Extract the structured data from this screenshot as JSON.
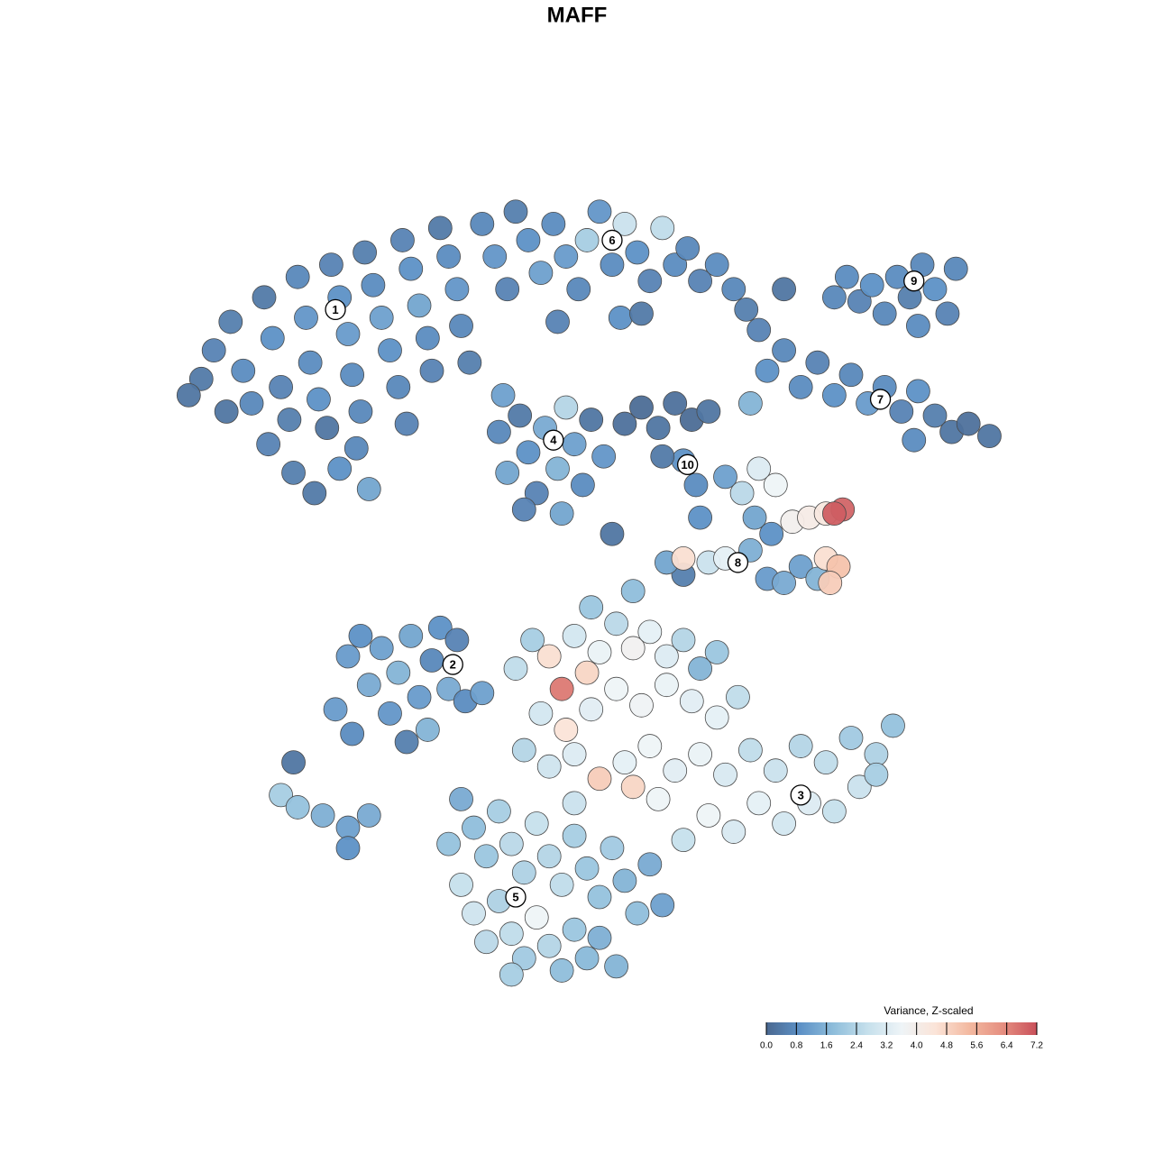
{
  "chart_data": {
    "type": "scatter",
    "title": "MAFF",
    "xlim": [
      -10,
      10
    ],
    "ylim": [
      -10,
      10
    ],
    "colorbar_title": "Variance, Z-scaled",
    "clim": [
      0,
      7.2
    ],
    "colorbar_ticks": [
      {
        "value": 0,
        "label": "0.0"
      },
      0.8,
      1.6,
      2.4,
      3.2,
      {
        "value": 4,
        "label": "4.0"
      },
      4.8,
      5.6,
      6.4,
      7.2
    ],
    "colormap": [
      "#4a6890",
      "#5d91c6",
      "#8fbedb",
      "#c6e0ec",
      "#eef4f7",
      "#fbe4d8",
      "#f3b9a0",
      "#e58e80",
      "#c9505a"
    ],
    "points": [
      [
        -9.5,
        4.8,
        0.4
      ],
      [
        -9.2,
        5.5,
        0.6
      ],
      [
        -8.8,
        6.2,
        0.5
      ],
      [
        -8.5,
        5.0,
        0.8
      ],
      [
        -8.3,
        4.2,
        0.7
      ],
      [
        -8.0,
        6.8,
        0.4
      ],
      [
        -7.8,
        5.8,
        0.9
      ],
      [
        -7.6,
        4.6,
        0.6
      ],
      [
        -7.4,
        3.8,
        0.5
      ],
      [
        -7.2,
        7.3,
        0.7
      ],
      [
        -7.0,
        6.3,
        1.0
      ],
      [
        -6.9,
        5.2,
        0.8
      ],
      [
        -6.7,
        4.3,
        0.9
      ],
      [
        -6.5,
        3.6,
        0.3
      ],
      [
        -6.4,
        7.6,
        0.6
      ],
      [
        -6.2,
        6.8,
        0.9
      ],
      [
        -6.0,
        5.9,
        1.1
      ],
      [
        -5.9,
        4.9,
        0.8
      ],
      [
        -5.7,
        4.0,
        0.7
      ],
      [
        -5.6,
        7.9,
        0.5
      ],
      [
        -5.4,
        7.1,
        0.8
      ],
      [
        -5.2,
        6.3,
        1.2
      ],
      [
        -5.0,
        5.5,
        0.9
      ],
      [
        -4.8,
        4.6,
        0.7
      ],
      [
        -4.7,
        8.2,
        0.6
      ],
      [
        -4.5,
        7.5,
        0.9
      ],
      [
        -4.3,
        6.6,
        1.3
      ],
      [
        -4.1,
        5.8,
        0.8
      ],
      [
        -4.0,
        5.0,
        0.6
      ],
      [
        -3.8,
        8.5,
        0.4
      ],
      [
        -3.6,
        7.8,
        0.8
      ],
      [
        -3.4,
        7.0,
        1.0
      ],
      [
        -3.3,
        6.1,
        0.7
      ],
      [
        -3.1,
        5.2,
        0.5
      ],
      [
        -8.9,
        4.0,
        0.3
      ],
      [
        -7.3,
        2.5,
        0.5
      ],
      [
        -6.8,
        2.0,
        0.4
      ],
      [
        -6.2,
        2.6,
        0.9
      ],
      [
        -5.5,
        2.1,
        1.3
      ],
      [
        -4.6,
        3.7,
        0.6
      ],
      [
        -5.8,
        3.1,
        0.7
      ],
      [
        -9.8,
        4.4,
        0.3
      ],
      [
        -7.9,
        3.2,
        0.6
      ],
      [
        -2.8,
        8.6,
        0.7
      ],
      [
        -2.5,
        7.8,
        1.0
      ],
      [
        -2.2,
        7.0,
        0.6
      ],
      [
        -2.0,
        8.9,
        0.5
      ],
      [
        -1.7,
        8.2,
        0.9
      ],
      [
        -1.4,
        7.4,
        1.2
      ],
      [
        -1.1,
        8.6,
        0.8
      ],
      [
        -0.8,
        7.8,
        1.1
      ],
      [
        -0.5,
        7.0,
        0.7
      ],
      [
        -0.3,
        8.2,
        2.2
      ],
      [
        0.0,
        8.9,
        1.0
      ],
      [
        0.3,
        7.6,
        0.8
      ],
      [
        0.6,
        8.6,
        2.8
      ],
      [
        0.9,
        7.9,
        0.9
      ],
      [
        1.2,
        7.2,
        0.6
      ],
      [
        1.5,
        8.5,
        2.6
      ],
      [
        1.8,
        7.6,
        0.8
      ],
      [
        2.1,
        8.0,
        0.7
      ],
      [
        2.4,
        7.2,
        0.6
      ],
      [
        2.8,
        7.6,
        0.8
      ],
      [
        3.2,
        7.0,
        0.7
      ],
      [
        3.5,
        6.5,
        0.5
      ],
      [
        0.5,
        6.3,
        0.9
      ],
      [
        -1.0,
        6.2,
        0.6
      ],
      [
        1.0,
        6.4,
        0.4
      ],
      [
        3.8,
        6.0,
        0.6
      ],
      [
        5.6,
        6.8,
        0.7
      ],
      [
        5.9,
        7.3,
        0.8
      ],
      [
        6.2,
        6.7,
        0.6
      ],
      [
        6.5,
        7.1,
        0.9
      ],
      [
        6.8,
        6.4,
        0.7
      ],
      [
        7.1,
        7.3,
        0.8
      ],
      [
        7.4,
        6.8,
        0.5
      ],
      [
        7.7,
        7.6,
        0.7
      ],
      [
        8.0,
        7.0,
        0.9
      ],
      [
        8.3,
        6.4,
        0.6
      ],
      [
        8.5,
        7.5,
        0.7
      ],
      [
        7.6,
        6.1,
        0.8
      ],
      [
        4.4,
        7.0,
        0.3
      ],
      [
        4.0,
        5.0,
        0.9
      ],
      [
        4.4,
        5.5,
        0.7
      ],
      [
        4.8,
        4.6,
        0.8
      ],
      [
        5.2,
        5.2,
        0.6
      ],
      [
        5.6,
        4.4,
        0.9
      ],
      [
        6.0,
        4.9,
        0.7
      ],
      [
        6.4,
        4.2,
        1.1
      ],
      [
        6.8,
        4.6,
        0.8
      ],
      [
        7.2,
        4.0,
        0.6
      ],
      [
        7.6,
        4.5,
        0.9
      ],
      [
        8.0,
        3.9,
        0.5
      ],
      [
        8.4,
        3.5,
        0.3
      ],
      [
        8.8,
        3.7,
        0.2
      ],
      [
        9.3,
        3.4,
        0.3
      ],
      [
        7.5,
        3.3,
        0.8
      ],
      [
        3.6,
        4.2,
        1.6
      ],
      [
        -2.4,
        3.5,
        0.7
      ],
      [
        -2.2,
        2.5,
        1.3
      ],
      [
        -1.9,
        3.9,
        0.4
      ],
      [
        -1.7,
        3.0,
        0.9
      ],
      [
        -1.5,
        2.0,
        0.6
      ],
      [
        -1.3,
        3.6,
        1.4
      ],
      [
        -1.0,
        2.6,
        1.6
      ],
      [
        -0.8,
        4.1,
        2.4
      ],
      [
        -0.6,
        3.2,
        1.2
      ],
      [
        -0.4,
        2.2,
        0.8
      ],
      [
        -0.2,
        3.8,
        0.3
      ],
      [
        0.1,
        2.9,
        1.0
      ],
      [
        -1.8,
        1.6,
        0.6
      ],
      [
        -2.3,
        4.4,
        1.2
      ],
      [
        -0.9,
        1.5,
        1.3
      ],
      [
        0.6,
        3.7,
        0.2
      ],
      [
        1.0,
        4.1,
        0.1
      ],
      [
        1.4,
        3.6,
        0.3
      ],
      [
        1.8,
        4.2,
        0.2
      ],
      [
        2.2,
        3.8,
        0.1
      ],
      [
        2.6,
        4.0,
        0.3
      ],
      [
        2.0,
        2.8,
        0.9
      ],
      [
        2.3,
        2.2,
        0.8
      ],
      [
        1.5,
        2.9,
        0.4
      ],
      [
        0.3,
        1.0,
        0.3
      ],
      [
        2.4,
        1.4,
        0.9
      ],
      [
        3.0,
        2.4,
        1.2
      ],
      [
        3.4,
        2.0,
        2.5
      ],
      [
        3.8,
        2.6,
        3.2
      ],
      [
        4.2,
        2.2,
        3.6
      ],
      [
        3.7,
        1.4,
        1.3
      ],
      [
        4.1,
        1.0,
        0.9
      ],
      [
        4.6,
        1.3,
        3.9
      ],
      [
        5.0,
        1.4,
        4.1
      ],
      [
        5.4,
        1.5,
        4.3
      ],
      [
        5.8,
        1.6,
        6.9
      ],
      [
        5.6,
        1.5,
        7.0
      ],
      [
        2.6,
        0.3,
        2.8
      ],
      [
        3.0,
        0.4,
        3.4
      ],
      [
        3.6,
        0.6,
        1.5
      ],
      [
        4.0,
        -0.1,
        1.1
      ],
      [
        4.4,
        -0.2,
        1.4
      ],
      [
        4.8,
        0.2,
        1.2
      ],
      [
        5.2,
        -0.1,
        1.6
      ],
      [
        5.4,
        0.4,
        4.6
      ],
      [
        5.7,
        0.2,
        5.2
      ],
      [
        5.5,
        -0.2,
        5.0
      ],
      [
        2.0,
        0.0,
        0.5
      ],
      [
        1.6,
        0.3,
        1.3
      ],
      [
        -6.0,
        -2.0,
        1.1
      ],
      [
        -5.7,
        -1.5,
        0.9
      ],
      [
        -5.5,
        -2.7,
        1.4
      ],
      [
        -5.2,
        -1.8,
        1.2
      ],
      [
        -5.0,
        -3.4,
        1.0
      ],
      [
        -4.8,
        -2.4,
        1.6
      ],
      [
        -4.5,
        -1.5,
        1.3
      ],
      [
        -4.3,
        -3.0,
        1.1
      ],
      [
        -4.0,
        -2.1,
        0.7
      ],
      [
        -3.8,
        -1.3,
        0.9
      ],
      [
        -3.6,
        -2.8,
        1.4
      ],
      [
        -3.4,
        -1.6,
        0.6
      ],
      [
        -3.2,
        -3.1,
        0.8
      ],
      [
        -6.3,
        -3.3,
        1.1
      ],
      [
        -5.9,
        -3.9,
        0.8
      ],
      [
        -4.6,
        -4.1,
        0.5
      ],
      [
        -2.8,
        -2.9,
        1.2
      ],
      [
        -4.1,
        -3.8,
        1.6
      ],
      [
        -7.6,
        -5.4,
        2.2
      ],
      [
        -7.2,
        -5.7,
        1.9
      ],
      [
        -6.6,
        -5.9,
        1.5
      ],
      [
        -6.0,
        -6.2,
        1.2
      ],
      [
        -5.5,
        -5.9,
        1.4
      ],
      [
        -6.0,
        -6.7,
        0.9
      ],
      [
        -7.3,
        -4.6,
        0.3
      ],
      [
        -2.0,
        -2.3,
        2.6
      ],
      [
        -1.6,
        -1.6,
        2.2
      ],
      [
        -1.2,
        -2.0,
        4.6
      ],
      [
        -0.9,
        -2.8,
        6.6
      ],
      [
        -0.6,
        -1.5,
        3.0
      ],
      [
        -0.3,
        -2.4,
        4.8
      ],
      [
        0.0,
        -1.9,
        3.5
      ],
      [
        0.4,
        -1.2,
        2.5
      ],
      [
        0.8,
        -1.8,
        3.8
      ],
      [
        1.2,
        -1.4,
        3.4
      ],
      [
        1.6,
        -2.0,
        3.2
      ],
      [
        2.0,
        -1.6,
        2.4
      ],
      [
        2.4,
        -2.3,
        1.6
      ],
      [
        2.8,
        -1.9,
        2.0
      ],
      [
        -1.4,
        -3.4,
        3.0
      ],
      [
        -0.8,
        -3.8,
        4.5
      ],
      [
        -0.2,
        -3.3,
        3.3
      ],
      [
        0.4,
        -2.8,
        3.6
      ],
      [
        1.0,
        -3.2,
        3.7
      ],
      [
        1.6,
        -2.7,
        3.5
      ],
      [
        2.2,
        -3.1,
        3.3
      ],
      [
        2.8,
        -3.5,
        3.4
      ],
      [
        3.3,
        -3.0,
        2.6
      ],
      [
        -1.8,
        -4.3,
        2.4
      ],
      [
        -1.2,
        -4.7,
        2.9
      ],
      [
        -0.6,
        -4.4,
        3.2
      ],
      [
        0.0,
        -5.0,
        5.0
      ],
      [
        0.6,
        -4.6,
        3.4
      ],
      [
        1.2,
        -4.2,
        3.6
      ],
      [
        1.8,
        -4.8,
        3.3
      ],
      [
        2.4,
        -4.4,
        3.5
      ],
      [
        3.0,
        -4.9,
        3.1
      ],
      [
        3.6,
        -4.3,
        2.6
      ],
      [
        4.2,
        -4.8,
        2.8
      ],
      [
        4.8,
        -4.2,
        2.4
      ],
      [
        5.4,
        -4.6,
        2.6
      ],
      [
        6.0,
        -4.0,
        2.1
      ],
      [
        6.6,
        -4.4,
        2.3
      ],
      [
        7.0,
        -3.7,
        1.9
      ],
      [
        5.0,
        -5.6,
        3.2
      ],
      [
        4.4,
        -6.1,
        3.0
      ],
      [
        3.8,
        -5.6,
        3.4
      ],
      [
        3.2,
        -6.3,
        3.1
      ],
      [
        2.6,
        -5.9,
        3.6
      ],
      [
        2.0,
        -6.5,
        2.7
      ],
      [
        5.6,
        -5.8,
        2.7
      ],
      [
        6.2,
        -5.2,
        2.8
      ],
      [
        6.6,
        -4.9,
        2.2
      ],
      [
        1.4,
        -5.5,
        3.6
      ],
      [
        0.8,
        -5.2,
        4.8
      ],
      [
        2.0,
        0.4,
        4.6
      ],
      [
        -0.2,
        -0.8,
        2.0
      ],
      [
        0.8,
        -0.4,
        1.8
      ],
      [
        -3.3,
        -5.5,
        1.4
      ],
      [
        -3.0,
        -6.2,
        1.8
      ],
      [
        -2.7,
        -6.9,
        2.0
      ],
      [
        -2.4,
        -5.8,
        2.2
      ],
      [
        -2.1,
        -6.6,
        2.5
      ],
      [
        -1.8,
        -7.3,
        2.3
      ],
      [
        -1.5,
        -6.1,
        2.7
      ],
      [
        -1.2,
        -6.9,
        2.4
      ],
      [
        -0.9,
        -7.6,
        2.6
      ],
      [
        -0.6,
        -6.4,
        2.2
      ],
      [
        -0.3,
        -7.2,
        2.0
      ],
      [
        0.0,
        -7.9,
        1.9
      ],
      [
        0.3,
        -6.7,
        2.1
      ],
      [
        0.6,
        -7.5,
        1.6
      ],
      [
        0.9,
        -8.3,
        1.8
      ],
      [
        1.2,
        -7.1,
        1.4
      ],
      [
        -3.3,
        -7.6,
        2.7
      ],
      [
        -3.0,
        -8.3,
        2.9
      ],
      [
        -2.7,
        -9.0,
        2.5
      ],
      [
        -2.4,
        -8.0,
        2.3
      ],
      [
        -2.1,
        -8.8,
        2.6
      ],
      [
        -1.8,
        -9.4,
        2.1
      ],
      [
        -1.5,
        -8.4,
        3.6
      ],
      [
        -1.2,
        -9.1,
        2.4
      ],
      [
        -0.9,
        -9.7,
        1.8
      ],
      [
        -0.6,
        -8.7,
        2.0
      ],
      [
        -0.3,
        -9.4,
        1.7
      ],
      [
        0.0,
        -8.9,
        1.5
      ],
      [
        0.4,
        -9.6,
        1.6
      ],
      [
        -3.6,
        -6.6,
        1.9
      ],
      [
        -0.6,
        -5.6,
        2.8
      ],
      [
        1.5,
        -8.1,
        1.2
      ],
      [
        -2.1,
        -9.8,
        2.2
      ]
    ],
    "annotations": [
      {
        "text": "1",
        "x": -6.3,
        "y": 6.5
      },
      {
        "text": "6",
        "x": 0.3,
        "y": 8.2
      },
      {
        "text": "9",
        "x": 7.5,
        "y": 7.2
      },
      {
        "text": "7",
        "x": 6.7,
        "y": 4.3
      },
      {
        "text": "4",
        "x": -1.1,
        "y": 3.3
      },
      {
        "text": "10",
        "x": 2.1,
        "y": 2.7
      },
      {
        "text": "8",
        "x": 3.3,
        "y": 0.3
      },
      {
        "text": "2",
        "x": -3.5,
        "y": -2.2
      },
      {
        "text": "3",
        "x": 4.8,
        "y": -5.4
      },
      {
        "text": "5",
        "x": -2.0,
        "y": -7.9
      }
    ]
  }
}
